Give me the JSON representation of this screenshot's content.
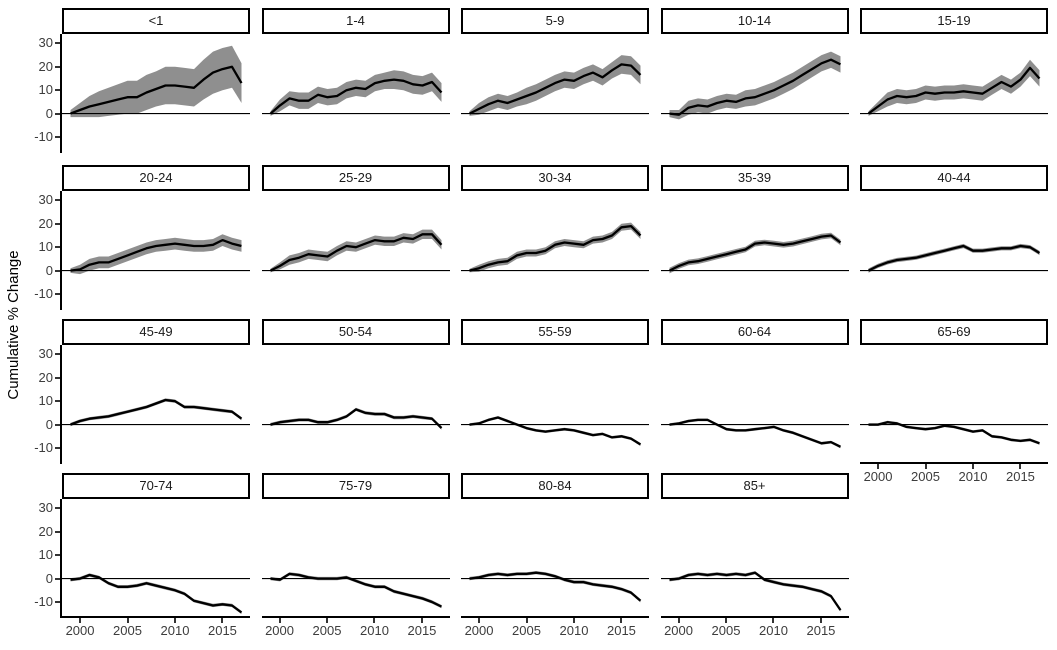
{
  "figure": {
    "background": "#ffffff"
  },
  "chart_data": {
    "type": "line",
    "layout": "small-multiples-facet-wrap",
    "ncol": 5,
    "title": "",
    "xlabel": "",
    "ylabel": "Cumulative % Change",
    "grid": false,
    "zero_reference_line": true,
    "legend": "none",
    "x": [
      1999,
      2000,
      2001,
      2002,
      2003,
      2004,
      2005,
      2006,
      2007,
      2008,
      2009,
      2010,
      2011,
      2012,
      2013,
      2014,
      2015,
      2016,
      2017
    ],
    "x_ticks": [
      2000,
      2005,
      2010,
      2015
    ],
    "y_ticks": [
      -10,
      0,
      10,
      20,
      30
    ],
    "xlim": [
      1998.1,
      2017.9
    ],
    "ylim": [
      -16,
      34
    ],
    "colors": {
      "line": "#000000",
      "ribbon": "#8f8f8f",
      "zero_line": "#000000",
      "axis": "#000000",
      "tick_text": "#3d3d3d",
      "strip_border": "#000000",
      "strip_fill": "#ffffff"
    },
    "facets": [
      {
        "label": "<1",
        "values": [
          0,
          1.5,
          3,
          4,
          5,
          6,
          7,
          7,
          9,
          10.5,
          12,
          12,
          11.5,
          11,
          14.5,
          17.5,
          19,
          20,
          13
        ],
        "lower": [
          -1.5,
          -1.5,
          -1.5,
          -1.5,
          -1,
          -0.5,
          0,
          0,
          1.5,
          3,
          4,
          4,
          3.5,
          3,
          6,
          8.5,
          10,
          11,
          4.5
        ],
        "upper": [
          1.5,
          4.5,
          7.5,
          9.5,
          11,
          12.5,
          14,
          14,
          16.5,
          18,
          20,
          20,
          19.5,
          19,
          23,
          26.5,
          28,
          29,
          21.5
        ]
      },
      {
        "label": "1-4",
        "values": [
          0,
          3.5,
          6.5,
          5.5,
          5.5,
          8,
          7,
          7.5,
          10,
          11,
          10.5,
          13,
          14,
          14.5,
          14,
          12.5,
          12,
          13.5,
          9
        ],
        "lower": [
          -1,
          1,
          3.5,
          2,
          2,
          4.5,
          3.5,
          4,
          6.5,
          7.5,
          7,
          9.5,
          10.5,
          10.5,
          10,
          8.5,
          8,
          9.5,
          5
        ],
        "upper": [
          1,
          6,
          9.5,
          9,
          9,
          11.5,
          10.5,
          11,
          13.5,
          14.5,
          14,
          16.5,
          17.5,
          18.5,
          18,
          16.5,
          16,
          17.5,
          13
        ]
      },
      {
        "label": "5-9",
        "values": [
          0,
          2,
          4,
          5.5,
          4.5,
          6,
          7.5,
          9,
          11,
          13,
          14.5,
          14,
          16,
          17.5,
          15.5,
          18.5,
          21,
          20.5,
          16.5
        ],
        "lower": [
          -1,
          -0.5,
          1,
          2.5,
          1.5,
          3,
          4,
          5.5,
          7.5,
          9.5,
          11,
          10.5,
          12.5,
          14,
          12,
          15,
          17,
          16.5,
          12.5
        ],
        "upper": [
          1,
          4.5,
          7,
          8.5,
          7.5,
          9,
          11,
          12.5,
          14.5,
          16.5,
          18,
          17.5,
          19.5,
          21,
          19,
          22,
          25,
          24.5,
          20.5
        ]
      },
      {
        "label": "10-14",
        "values": [
          0,
          -0.5,
          2.5,
          3.5,
          3,
          4.5,
          5.5,
          5,
          6.5,
          7,
          8.5,
          10,
          12,
          14,
          16.5,
          19,
          21.5,
          23,
          21
        ],
        "lower": [
          -1.5,
          -2.5,
          -0.5,
          0.5,
          0,
          1.5,
          2.5,
          2,
          3,
          3.5,
          5,
          6.5,
          8.5,
          10.5,
          13,
          15.5,
          18,
          19.5,
          17.5
        ],
        "upper": [
          1.5,
          1.5,
          5.5,
          6.5,
          6,
          7.5,
          8.5,
          8,
          10,
          10.5,
          12,
          13.5,
          15.5,
          17.5,
          20,
          22.5,
          25,
          26.5,
          24.5
        ]
      },
      {
        "label": "15-19",
        "values": [
          0,
          3,
          6,
          7.5,
          7,
          7.5,
          9,
          8.5,
          9,
          9,
          9.5,
          9,
          8.5,
          11,
          13.5,
          11.5,
          14.5,
          19.5,
          15
        ],
        "lower": [
          -1,
          1,
          3,
          4.5,
          4,
          4.5,
          6,
          5.5,
          6,
          6,
          6.5,
          6,
          5.5,
          8,
          10.5,
          8.5,
          11.5,
          16,
          11.5
        ],
        "upper": [
          1,
          5,
          9,
          10.5,
          10,
          10.5,
          12,
          11.5,
          12,
          12,
          12.5,
          12,
          11.5,
          14,
          16.5,
          14.5,
          17.5,
          23,
          18.5
        ]
      },
      {
        "label": "20-24",
        "values": [
          0,
          0.5,
          2.5,
          3.5,
          3.5,
          5,
          6.5,
          8,
          9.5,
          10.5,
          11,
          11.5,
          11,
          10.5,
          10.5,
          11,
          13,
          11.5,
          10.5
        ],
        "lower": [
          -1,
          -1.5,
          0,
          1,
          1,
          2.5,
          4,
          5.5,
          7,
          8,
          8.5,
          9,
          8.5,
          8,
          8,
          8.5,
          10.5,
          9,
          8
        ],
        "upper": [
          1,
          2.5,
          5,
          6,
          6,
          7.5,
          9,
          10.5,
          12,
          13,
          13.5,
          14,
          13.5,
          13,
          13,
          13.5,
          15.5,
          14,
          13
        ]
      },
      {
        "label": "25-29",
        "values": [
          0,
          2,
          4.5,
          5.5,
          7,
          6.5,
          6,
          8.5,
          10.5,
          10,
          11.5,
          13,
          12.5,
          12.5,
          14,
          13.5,
          15.5,
          15.5,
          11
        ],
        "lower": [
          -0.8,
          0.5,
          2.5,
          3.5,
          5,
          4.5,
          4,
          6.5,
          8.5,
          8,
          9.5,
          11,
          10.5,
          10.5,
          12,
          11.5,
          13.5,
          13.5,
          9
        ],
        "upper": [
          0.8,
          3.5,
          6.5,
          7.5,
          9,
          8.5,
          8,
          10.5,
          12.5,
          12,
          13.5,
          15,
          14.5,
          14.5,
          16,
          15.5,
          17.5,
          17.5,
          13
        ]
      },
      {
        "label": "30-34",
        "values": [
          0,
          1,
          2.5,
          3.5,
          4,
          6.5,
          7.5,
          7.5,
          8.5,
          11,
          12,
          11.5,
          11,
          13,
          13.5,
          15,
          18.5,
          19,
          15
        ],
        "lower": [
          -0.7,
          -0.5,
          1,
          2,
          2.5,
          5,
          6,
          6,
          7,
          9.5,
          10.5,
          10,
          9.5,
          11.5,
          12,
          13.5,
          17,
          17.5,
          13.5
        ],
        "upper": [
          0.7,
          2.5,
          4,
          5,
          5.5,
          8,
          9,
          9,
          10,
          12.5,
          13.5,
          13,
          12.5,
          14.5,
          15,
          16.5,
          20,
          20.5,
          16.5
        ]
      },
      {
        "label": "35-39",
        "values": [
          0,
          2,
          3.5,
          4,
          5,
          6,
          7,
          8,
          9,
          11.5,
          12,
          11.5,
          11,
          11.5,
          12.5,
          13.5,
          14.5,
          15,
          12
        ],
        "band": 1.2
      },
      {
        "label": "40-44",
        "values": [
          0,
          2,
          3.5,
          4.5,
          5,
          5.5,
          6.5,
          7.5,
          8.5,
          9.5,
          10.5,
          8.5,
          8.5,
          9,
          9.5,
          9.5,
          10.5,
          10,
          7.5
        ],
        "band": 0.9
      },
      {
        "label": "45-49",
        "values": [
          0,
          1.5,
          2.5,
          3,
          3.5,
          4.5,
          5.5,
          6.5,
          7.5,
          9,
          10.5,
          10,
          7.5,
          7.5,
          7,
          6.5,
          6,
          5.5,
          2.5
        ],
        "band": 0.7
      },
      {
        "label": "50-54",
        "values": [
          0,
          1,
          1.5,
          2,
          2,
          1,
          1,
          2,
          3.5,
          6.5,
          5,
          4.5,
          4.5,
          3,
          3,
          3.5,
          3,
          2.5,
          -1.5
        ],
        "band": 0.7
      },
      {
        "label": "55-59",
        "values": [
          0,
          0.5,
          2,
          3,
          1.5,
          0,
          -1.5,
          -2.5,
          -3,
          -2.5,
          -2,
          -2.5,
          -3.5,
          -4.5,
          -4,
          -5.5,
          -5,
          -6,
          -8.5
        ],
        "band": 0.6
      },
      {
        "label": "60-64",
        "values": [
          0,
          0.5,
          1.5,
          2,
          2,
          0,
          -2,
          -2.5,
          -2.5,
          -2,
          -1.5,
          -1,
          -2.5,
          -3.5,
          -5,
          -6.5,
          -8,
          -7.5,
          -9.5
        ],
        "band": 0.6
      },
      {
        "label": "65-69",
        "values": [
          0,
          0,
          1,
          0.5,
          -1,
          -1.5,
          -2,
          -1.5,
          -0.5,
          -1,
          -2,
          -3,
          -2.5,
          -5,
          -5.5,
          -6.5,
          -7,
          -6.5,
          -8
        ],
        "band": 0.6
      },
      {
        "label": "70-74",
        "values": [
          -0.5,
          0,
          1.5,
          0.5,
          -2,
          -3.5,
          -3.5,
          -3,
          -2,
          -3,
          -4,
          -5,
          -6.5,
          -9.5,
          -10.5,
          -11.5,
          -11,
          -11.5,
          -14.5
        ],
        "band": 0.7
      },
      {
        "label": "75-79",
        "values": [
          0,
          -0.5,
          2,
          1.5,
          0.5,
          0,
          0,
          0,
          0.5,
          -1,
          -2.5,
          -3.5,
          -3.5,
          -5.5,
          -6.5,
          -7.5,
          -8.5,
          -10,
          -12
        ],
        "band": 0.7
      },
      {
        "label": "80-84",
        "values": [
          0,
          0.5,
          1.5,
          2,
          1.5,
          2,
          2,
          2.5,
          2,
          1,
          -0.5,
          -1.5,
          -1.5,
          -2.5,
          -3,
          -3.5,
          -4.5,
          -6,
          -9.5
        ],
        "band": 0.7
      },
      {
        "label": "85+",
        "values": [
          -0.5,
          0,
          1.5,
          2,
          1.5,
          2,
          1.5,
          2,
          1.5,
          2.5,
          -0.5,
          -1.5,
          -2.5,
          -3,
          -3.5,
          -4.5,
          -5.5,
          -7.5,
          -13.5
        ],
        "band": 0.7
      }
    ]
  }
}
